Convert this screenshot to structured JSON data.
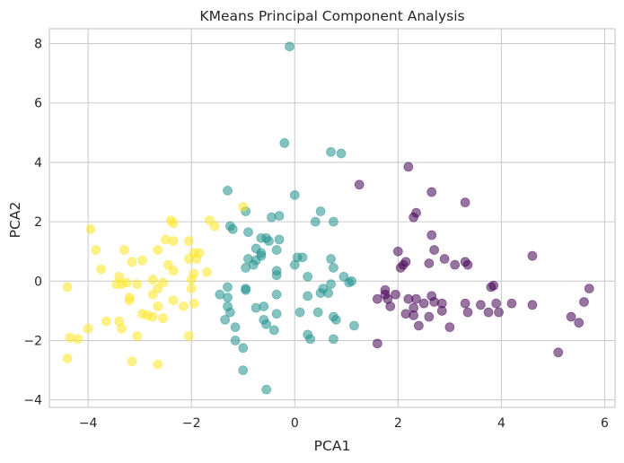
{
  "chart_data": {
    "type": "scatter",
    "title": "KMeans Principal Component Analysis",
    "xlabel": "PCA1",
    "ylabel": "PCA2",
    "xlim": [
      -4.75,
      6.2
    ],
    "ylim": [
      -4.25,
      8.5
    ],
    "xticks": [
      -4,
      -2,
      0,
      2,
      4,
      6
    ],
    "yticks": [
      -4,
      -2,
      0,
      2,
      4,
      6,
      8
    ],
    "xtick_labels": [
      "−4",
      "−2",
      "0",
      "2",
      "4",
      "6"
    ],
    "ytick_labels": [
      "−4",
      "−2",
      "0",
      "2",
      "4",
      "6",
      "8"
    ],
    "grid": true,
    "legend": "none",
    "point_opacity": 0.55,
    "colors": {
      "background": "#ffffff",
      "grid": "#cccccc",
      "text": "#262626"
    },
    "series": [
      {
        "color": "#440154",
        "points": [
          [
            2.2,
            3.85
          ],
          [
            1.25,
            3.25
          ],
          [
            2.65,
            3.0
          ],
          [
            3.3,
            2.65
          ],
          [
            2.35,
            2.3
          ],
          [
            2.3,
            2.15
          ],
          [
            2.0,
            1.0
          ],
          [
            2.65,
            1.55
          ],
          [
            2.7,
            1.05
          ],
          [
            2.9,
            0.75
          ],
          [
            2.6,
            0.6
          ],
          [
            3.1,
            0.55
          ],
          [
            3.35,
            0.55
          ],
          [
            3.3,
            0.65
          ],
          [
            4.6,
            0.85
          ],
          [
            2.1,
            0.55
          ],
          [
            2.15,
            0.65
          ],
          [
            2.05,
            0.45
          ],
          [
            1.75,
            -0.3
          ],
          [
            1.8,
            -0.6
          ],
          [
            1.95,
            -0.45
          ],
          [
            1.85,
            -0.85
          ],
          [
            2.2,
            -0.6
          ],
          [
            2.35,
            -0.6
          ],
          [
            2.5,
            -0.75
          ],
          [
            2.3,
            -0.9
          ],
          [
            2.7,
            -0.7
          ],
          [
            2.65,
            -0.5
          ],
          [
            2.85,
            -0.75
          ],
          [
            2.85,
            -1.0
          ],
          [
            2.3,
            -1.15
          ],
          [
            2.15,
            -1.1
          ],
          [
            2.6,
            -1.2
          ],
          [
            2.4,
            -1.5
          ],
          [
            3.3,
            -0.75
          ],
          [
            3.35,
            -1.05
          ],
          [
            3.6,
            -0.8
          ],
          [
            3.8,
            -0.2
          ],
          [
            3.85,
            -0.15
          ],
          [
            4.2,
            -0.75
          ],
          [
            3.9,
            -0.75
          ],
          [
            4.6,
            -0.8
          ],
          [
            3.95,
            -1.05
          ],
          [
            3.75,
            -1.05
          ],
          [
            5.6,
            -0.7
          ],
          [
            5.7,
            -0.25
          ],
          [
            5.35,
            -1.2
          ],
          [
            5.5,
            -1.4
          ],
          [
            5.1,
            -2.4
          ],
          [
            3.0,
            -1.55
          ],
          [
            1.6,
            -2.1
          ],
          [
            1.6,
            -0.6
          ],
          [
            1.75,
            -0.45
          ]
        ]
      },
      {
        "color": "#21918c",
        "points": [
          [
            -0.1,
            7.9
          ],
          [
            -0.2,
            4.65
          ],
          [
            0.7,
            4.35
          ],
          [
            0.9,
            4.3
          ],
          [
            -1.3,
            3.05
          ],
          [
            0.0,
            2.9
          ],
          [
            -0.3,
            2.2
          ],
          [
            -0.95,
            2.35
          ],
          [
            -0.45,
            2.15
          ],
          [
            0.4,
            2.0
          ],
          [
            0.5,
            2.35
          ],
          [
            0.75,
            2.0
          ],
          [
            -1.25,
            1.85
          ],
          [
            -1.2,
            1.75
          ],
          [
            -0.9,
            1.65
          ],
          [
            -0.55,
            1.45
          ],
          [
            -0.65,
            1.45
          ],
          [
            -0.5,
            1.35
          ],
          [
            -0.3,
            1.4
          ],
          [
            -0.35,
            1.05
          ],
          [
            -0.75,
            1.1
          ],
          [
            -0.65,
            0.85
          ],
          [
            -0.75,
            0.7
          ],
          [
            -0.9,
            0.75
          ],
          [
            -0.8,
            0.55
          ],
          [
            -0.95,
            0.45
          ],
          [
            -0.65,
            0.95
          ],
          [
            -0.35,
            0.35
          ],
          [
            -0.35,
            0.2
          ],
          [
            0.05,
            0.8
          ],
          [
            0.15,
            0.8
          ],
          [
            0.0,
            0.55
          ],
          [
            0.25,
            0.15
          ],
          [
            0.7,
            0.75
          ],
          [
            0.75,
            0.45
          ],
          [
            0.95,
            0.15
          ],
          [
            0.7,
            -0.1
          ],
          [
            1.05,
            -0.05
          ],
          [
            1.1,
            0.0
          ],
          [
            0.55,
            -0.25
          ],
          [
            0.5,
            -0.4
          ],
          [
            0.65,
            -0.4
          ],
          [
            0.25,
            -0.5
          ],
          [
            -0.35,
            -0.45
          ],
          [
            -0.95,
            -0.25
          ],
          [
            -0.95,
            -0.3
          ],
          [
            -1.3,
            -0.55
          ],
          [
            -1.3,
            -0.85
          ],
          [
            -1.25,
            -1.05
          ],
          [
            -1.35,
            -1.3
          ],
          [
            -0.75,
            -0.9
          ],
          [
            -0.6,
            -0.85
          ],
          [
            -0.35,
            -1.1
          ],
          [
            -0.6,
            -1.3
          ],
          [
            0.1,
            -1.05
          ],
          [
            0.45,
            -1.05
          ],
          [
            0.75,
            -1.2
          ],
          [
            0.8,
            -1.3
          ],
          [
            1.15,
            -1.5
          ],
          [
            -0.4,
            -1.65
          ],
          [
            0.25,
            -1.8
          ],
          [
            0.3,
            -1.95
          ],
          [
            0.75,
            -1.95
          ],
          [
            -1.15,
            -1.55
          ],
          [
            -1.15,
            -2.0
          ],
          [
            -1.0,
            -2.25
          ],
          [
            -1.0,
            -3.0
          ],
          [
            -0.55,
            -3.65
          ],
          [
            -1.45,
            -0.45
          ],
          [
            -1.3,
            -0.2
          ],
          [
            -0.55,
            -1.45
          ]
        ]
      },
      {
        "color": "#fde725",
        "points": [
          [
            -3.95,
            1.75
          ],
          [
            -3.85,
            1.05
          ],
          [
            -3.3,
            1.05
          ],
          [
            -3.75,
            0.4
          ],
          [
            -3.15,
            0.65
          ],
          [
            -2.95,
            0.7
          ],
          [
            -2.65,
            1.05
          ],
          [
            -2.4,
            2.05
          ],
          [
            -2.35,
            1.95
          ],
          [
            -2.5,
            1.4
          ],
          [
            -2.35,
            1.35
          ],
          [
            -1.65,
            2.05
          ],
          [
            -1.55,
            1.85
          ],
          [
            -2.05,
            1.35
          ],
          [
            -1.95,
            0.95
          ],
          [
            -1.85,
            0.95
          ],
          [
            -2.05,
            0.75
          ],
          [
            -1.9,
            0.75
          ],
          [
            -1.95,
            0.25
          ],
          [
            -1.7,
            0.3
          ],
          [
            -2.0,
            0.05
          ],
          [
            -2.45,
            0.55
          ],
          [
            -2.35,
            0.35
          ],
          [
            -3.4,
            0.15
          ],
          [
            -3.35,
            -0.1
          ],
          [
            -3.45,
            -0.1
          ],
          [
            -3.25,
            -0.05
          ],
          [
            -3.05,
            -0.1
          ],
          [
            -2.75,
            0.05
          ],
          [
            -2.65,
            -0.25
          ],
          [
            -2.55,
            -0.05
          ],
          [
            -2.75,
            -0.45
          ],
          [
            -2.35,
            -0.65
          ],
          [
            -3.2,
            -0.55
          ],
          [
            -3.2,
            -0.65
          ],
          [
            -2.65,
            -0.85
          ],
          [
            -2.15,
            -0.85
          ],
          [
            -1.95,
            -0.75
          ],
          [
            -3.65,
            -1.35
          ],
          [
            -3.4,
            -1.35
          ],
          [
            -3.35,
            -1.6
          ],
          [
            -2.95,
            -1.1
          ],
          [
            -2.85,
            -1.15
          ],
          [
            -2.75,
            -1.2
          ],
          [
            -2.55,
            -1.25
          ],
          [
            -3.05,
            -1.85
          ],
          [
            -4.35,
            -1.9
          ],
          [
            -4.2,
            -1.95
          ],
          [
            -4.0,
            -1.6
          ],
          [
            -4.4,
            -0.2
          ],
          [
            -4.4,
            -2.6
          ],
          [
            -3.15,
            -2.7
          ],
          [
            -2.65,
            -2.8
          ],
          [
            -2.05,
            -1.85
          ],
          [
            -1.0,
            2.5
          ],
          [
            -2.0,
            -0.25
          ]
        ]
      }
    ]
  }
}
